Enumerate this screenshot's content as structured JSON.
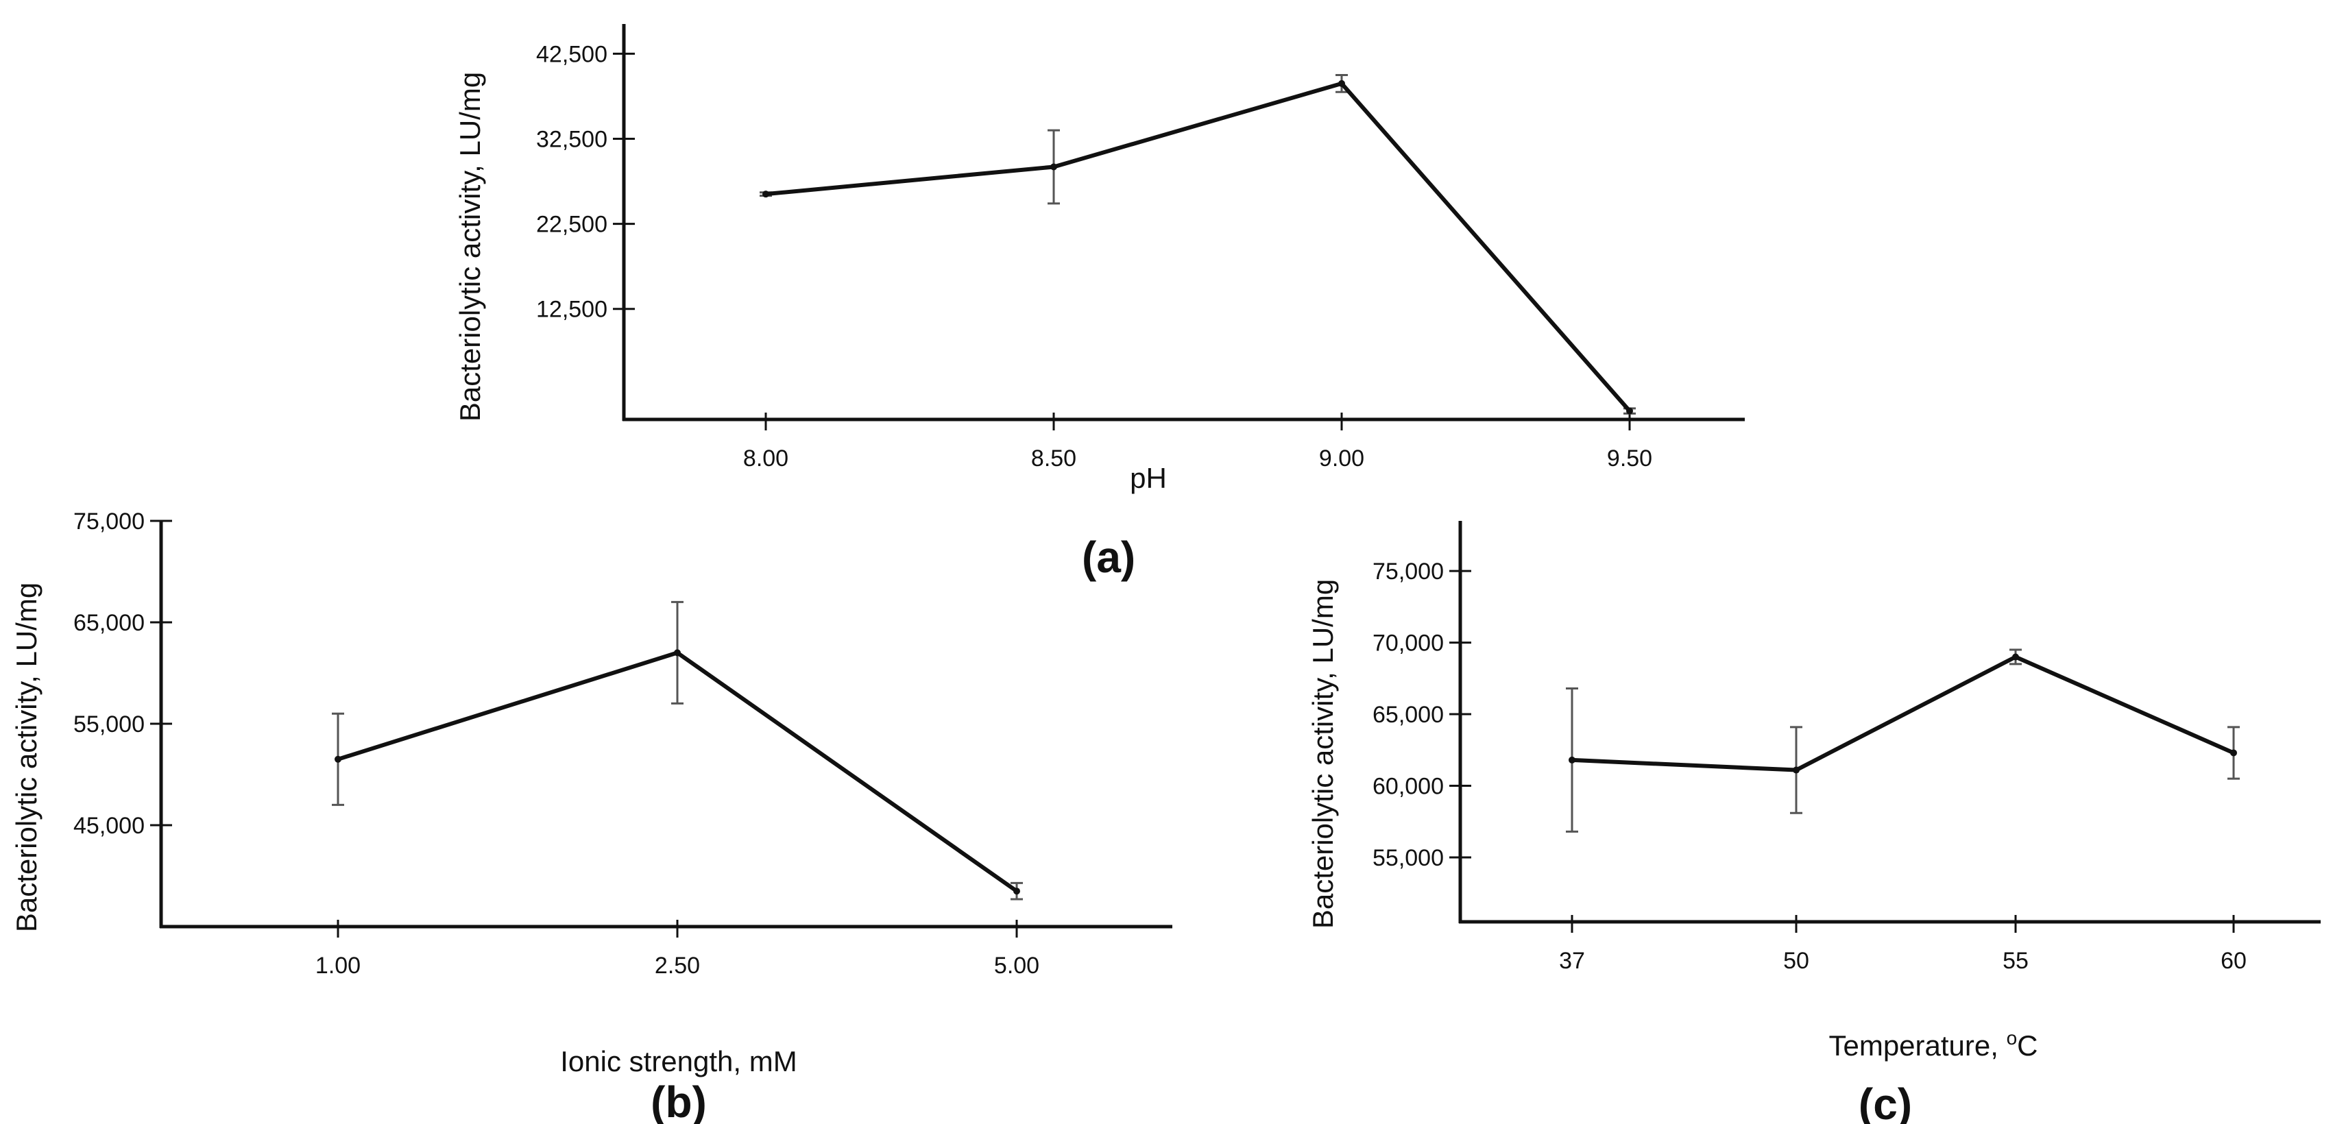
{
  "colors": {
    "axis": "#111111",
    "line": "#111111",
    "error_bar": "#555555",
    "background": "#ffffff"
  },
  "chart_data": [
    {
      "type": "line",
      "panel": "(a)",
      "xlabel": "pH",
      "ylabel": "Bacteriolytic activity, LU/mg",
      "categories": [
        "8.00",
        "8.50",
        "9.00",
        "9.50"
      ],
      "values": [
        26000,
        29200,
        39000,
        500
      ],
      "errors": [
        200,
        4300,
        1000,
        300
      ],
      "yticks": [
        12500,
        22500,
        32500,
        42500
      ],
      "ytick_labels": [
        "12,500",
        "22,500",
        "32,500",
        "42,500"
      ],
      "ylim": [
        -500,
        46000
      ]
    },
    {
      "type": "line",
      "panel": "(b)",
      "xlabel": "Ionic strength, mM",
      "ylabel": "Bacteriolytic activity, LU/mg",
      "categories": [
        "1.00",
        "2.50",
        "5.00"
      ],
      "values": [
        51500,
        62000,
        38500
      ],
      "errors": [
        4500,
        5000,
        800
      ],
      "yticks": [
        45000,
        55000,
        65000,
        75000
      ],
      "ytick_labels": [
        "45,000",
        "55,000",
        "65,000",
        "75,000"
      ],
      "ylim": [
        35000,
        75000
      ]
    },
    {
      "type": "line",
      "panel": "(c)",
      "xlabel": "Temperature, ",
      "xlabel_sup": "o",
      "xlabel_unit": "C",
      "ylabel": "Bacteriolytic activity, LU/mg",
      "categories": [
        "37",
        "50",
        "55",
        "60"
      ],
      "values": [
        61800,
        61100,
        69000,
        62300
      ],
      "errors": [
        5000,
        3000,
        500,
        1800
      ],
      "yticks": [
        55000,
        60000,
        65000,
        70000,
        75000
      ],
      "ytick_labels": [
        "55,000",
        "60,000",
        "65,000",
        "70,000",
        "75,000"
      ],
      "ylim": [
        50500,
        78500
      ]
    }
  ]
}
